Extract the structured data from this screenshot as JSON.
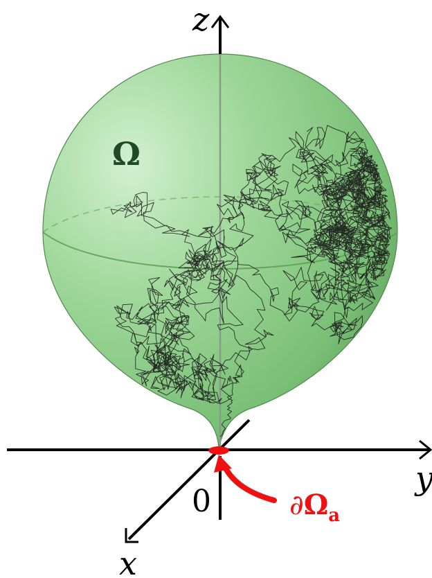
{
  "labels": {
    "z_axis": "z",
    "y_axis": "y",
    "x_axis": "x",
    "origin": "0",
    "domain": "Ω",
    "boundary_partial": "∂",
    "boundary_symbol": "Ω",
    "boundary_subscript": "a"
  },
  "colors": {
    "domain_fill": "#7cc47c",
    "domain_text": "#1f4a24",
    "boundary": "#ee1111",
    "axes": "#000000",
    "path": "#1a1a1a",
    "equator": "#5e9e55"
  },
  "icons": {
    "arrow": "curved-arrow-icon"
  }
}
